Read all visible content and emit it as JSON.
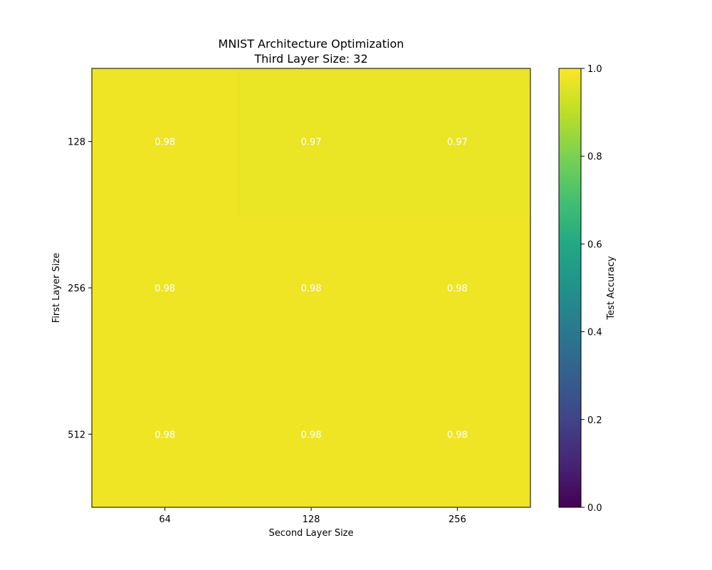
{
  "chart_data": {
    "type": "heatmap",
    "title": "MNIST Architecture Optimization",
    "subtitle": "Third Layer Size: 32",
    "xlabel": "Second Layer Size",
    "ylabel": "First Layer Size",
    "x_categories": [
      "64",
      "128",
      "256"
    ],
    "y_categories": [
      "128",
      "256",
      "512"
    ],
    "values": [
      [
        0.98,
        0.97,
        0.97
      ],
      [
        0.98,
        0.98,
        0.98
      ],
      [
        0.98,
        0.98,
        0.98
      ]
    ],
    "cell_labels": [
      [
        "0.98",
        "0.97",
        "0.97"
      ],
      [
        "0.98",
        "0.98",
        "0.98"
      ],
      [
        "0.98",
        "0.98",
        "0.98"
      ]
    ],
    "colorbar": {
      "label": "Test Accuracy",
      "range": [
        0.0,
        1.0
      ],
      "ticks": [
        "0.0",
        "0.2",
        "0.4",
        "0.6",
        "0.8",
        "1.0"
      ],
      "colormap": "viridis"
    },
    "grid": false
  }
}
